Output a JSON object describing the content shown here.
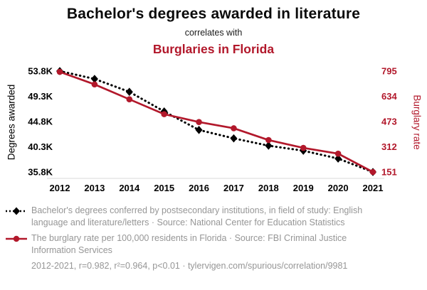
{
  "header": {
    "title": "Bachelor's degrees awarded in literature",
    "subtitle": "correlates with",
    "correlate_title": "Burglaries in Florida"
  },
  "colors": {
    "accent_red": "#b2182b",
    "series_black": "#000000",
    "muted_text": "#969696"
  },
  "chart_data": {
    "type": "line",
    "title": "Bachelor's degrees awarded in literature correlates with Burglaries in Florida",
    "x": [
      2012,
      2013,
      2014,
      2015,
      2016,
      2017,
      2018,
      2019,
      2020,
      2021
    ],
    "series": [
      {
        "name": "Bachelor's degrees conferred by postsecondary institutions, in field of study: English language and literature/letters",
        "axis": "left",
        "color": "#000000",
        "marker": "diamond",
        "dash": true,
        "values": [
          53800,
          52400,
          50100,
          46600,
          43300,
          41800,
          40500,
          39600,
          38200,
          35800
        ]
      },
      {
        "name": "The burglary rate per 100,000 residents in Florida",
        "axis": "right",
        "color": "#b2182b",
        "marker": "circle",
        "dash": false,
        "values": [
          790,
          710,
          615,
          520,
          470,
          430,
          355,
          305,
          268,
          151
        ]
      }
    ],
    "left_axis": {
      "label": "Degrees awarded",
      "color": "#000000",
      "ticks": [
        "53.8K",
        "49.3K",
        "44.8K",
        "40.3K",
        "35.8K"
      ],
      "tick_values": [
        53800,
        49300,
        44800,
        40300,
        35800
      ],
      "min": 35800,
      "max": 53800
    },
    "right_axis": {
      "label": "Burglary rate",
      "color": "#b2182b",
      "ticks": [
        "795",
        "634",
        "473",
        "312",
        "151"
      ],
      "tick_values": [
        795,
        634,
        473,
        312,
        151
      ],
      "min": 151,
      "max": 795
    },
    "grid": false,
    "legend_position": "bottom"
  },
  "legend": {
    "items": [
      {
        "text": "Bachelor's degrees conferred by postsecondary institutions, in field of study: English language and literature/letters · Source: National Center for Education Statistics"
      },
      {
        "text": "The burglary rate per 100,000 residents in Florida · Source: FBI Criminal Justice Information Services"
      }
    ]
  },
  "footer": {
    "text": "2012-2021, r=0.982, r²=0.964, p<0.01 · tylervigen.com/spurious/correlation/9981"
  }
}
